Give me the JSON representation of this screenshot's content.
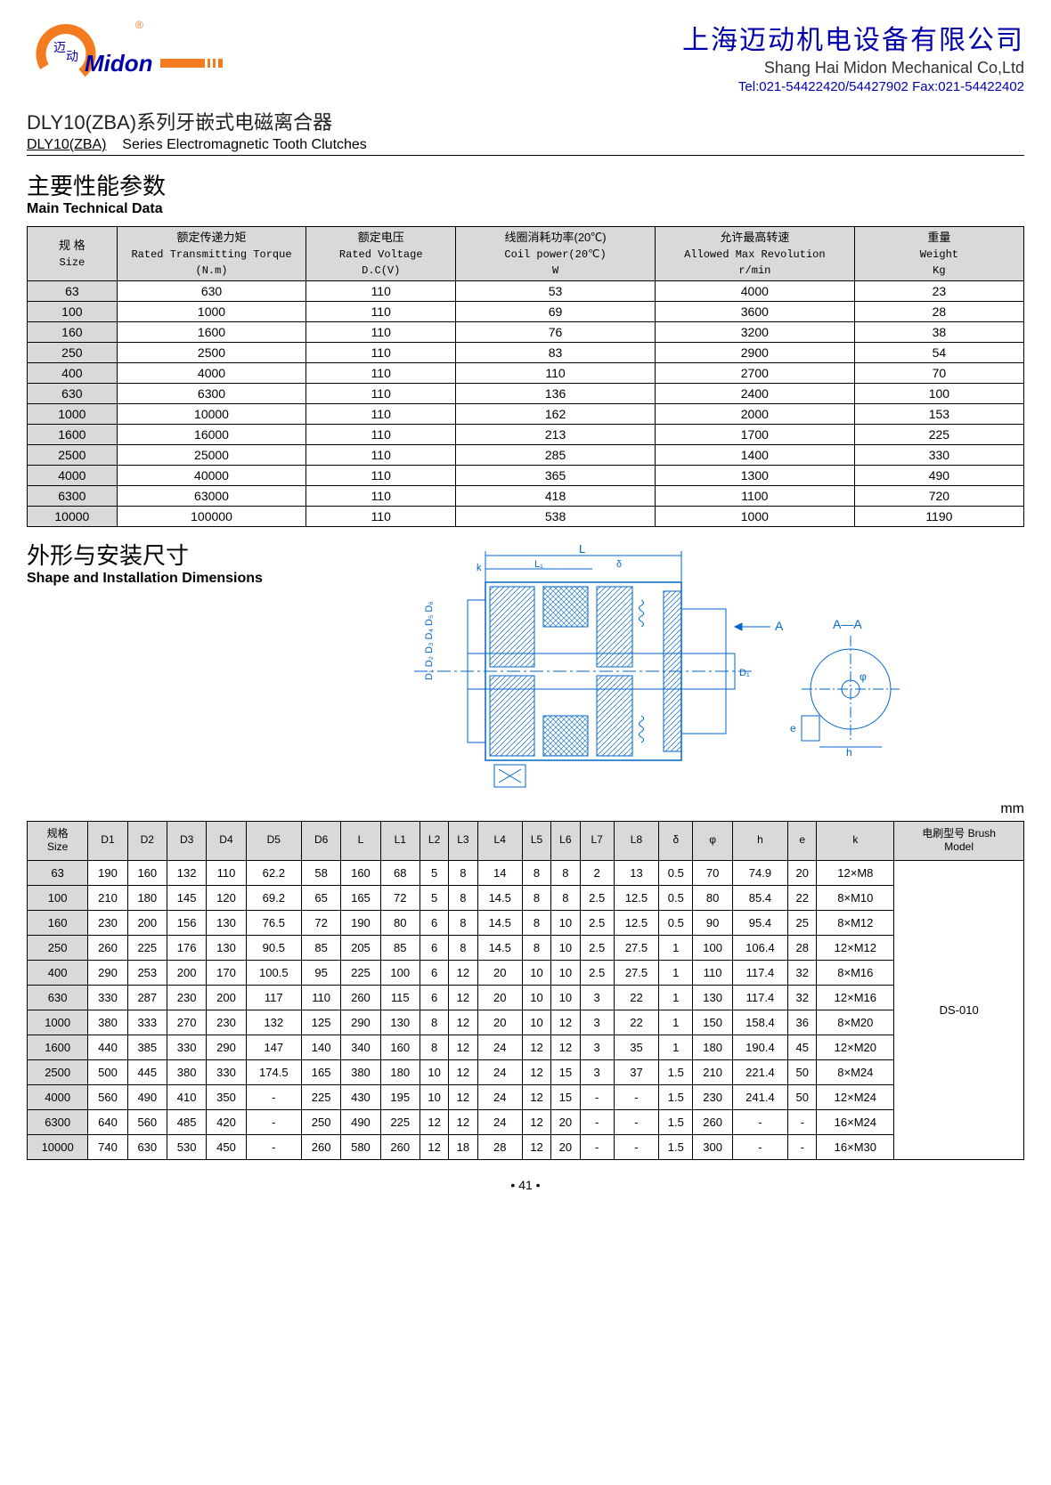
{
  "logo": {
    "brand_cn": "迈动",
    "brand_en": "Midon",
    "accent_color": "#f47b20",
    "reg_mark": "®"
  },
  "company": {
    "name_cn": "上海迈动机电设备有限公司",
    "name_en": "Shang Hai Midon Mechanical Co,Ltd",
    "contact": "Tel:021-54422420/54427902 Fax:021-54422402"
  },
  "product": {
    "title_prefix": "DLY10(ZBA)",
    "title_cn": "系列牙嵌式电磁离合器",
    "subtitle_prefix": "DLY10(ZBA)",
    "subtitle_en": "Series Electromagnetic Tooth Clutches"
  },
  "section1": {
    "heading_cn": "主要性能参数",
    "heading_en": "Main Technical Data"
  },
  "tech_table": {
    "headers": [
      {
        "cn": "规 格",
        "en": "Size",
        "unit": ""
      },
      {
        "cn": "额定传递力矩",
        "en": "Rated Transmitting Torque",
        "unit": "(N.m)"
      },
      {
        "cn": "额定电压",
        "en": "Rated Voltage",
        "unit": "D.C(V)"
      },
      {
        "cn": "线圈消耗功率(20℃)",
        "en": "Coil power(20℃)",
        "unit": "W"
      },
      {
        "cn": "允许最高转速",
        "en": "Allowed Max Revolution",
        "unit": "r/min"
      },
      {
        "cn": "重量",
        "en": "Weight",
        "unit": "Kg"
      }
    ],
    "rows": [
      [
        "63",
        "630",
        "110",
        "53",
        "4000",
        "23"
      ],
      [
        "100",
        "1000",
        "110",
        "69",
        "3600",
        "28"
      ],
      [
        "160",
        "1600",
        "110",
        "76",
        "3200",
        "38"
      ],
      [
        "250",
        "2500",
        "110",
        "83",
        "2900",
        "54"
      ],
      [
        "400",
        "4000",
        "110",
        "110",
        "2700",
        "70"
      ],
      [
        "630",
        "6300",
        "110",
        "136",
        "2400",
        "100"
      ],
      [
        "1000",
        "10000",
        "110",
        "162",
        "2000",
        "153"
      ],
      [
        "1600",
        "16000",
        "110",
        "213",
        "1700",
        "225"
      ],
      [
        "2500",
        "25000",
        "110",
        "285",
        "1400",
        "330"
      ],
      [
        "4000",
        "40000",
        "110",
        "365",
        "1300",
        "490"
      ],
      [
        "6300",
        "63000",
        "110",
        "418",
        "1100",
        "720"
      ],
      [
        "10000",
        "100000",
        "110",
        "538",
        "1000",
        "1190"
      ]
    ]
  },
  "section2": {
    "heading_cn": "外形与安装尺寸",
    "heading_en": "Shape and Installation Dimensions",
    "unit_label": "mm"
  },
  "dims_table": {
    "headers": [
      "规格\nSize",
      "D1",
      "D2",
      "D3",
      "D4",
      "D5",
      "D6",
      "L",
      "L1",
      "L2",
      "L3",
      "L4",
      "L5",
      "L6",
      "L7",
      "L8",
      "δ",
      "φ",
      "h",
      "e",
      "k",
      "电刷型号 Brush\nModel"
    ],
    "rows": [
      [
        "63",
        "190",
        "160",
        "132",
        "110",
        "62.2",
        "58",
        "160",
        "68",
        "5",
        "8",
        "14",
        "8",
        "8",
        "2",
        "13",
        "0.5",
        "70",
        "74.9",
        "20",
        "12×M8"
      ],
      [
        "100",
        "210",
        "180",
        "145",
        "120",
        "69.2",
        "65",
        "165",
        "72",
        "5",
        "8",
        "14.5",
        "8",
        "8",
        "2.5",
        "12.5",
        "0.5",
        "80",
        "85.4",
        "22",
        "8×M10"
      ],
      [
        "160",
        "230",
        "200",
        "156",
        "130",
        "76.5",
        "72",
        "190",
        "80",
        "6",
        "8",
        "14.5",
        "8",
        "10",
        "2.5",
        "12.5",
        "0.5",
        "90",
        "95.4",
        "25",
        "8×M12"
      ],
      [
        "250",
        "260",
        "225",
        "176",
        "130",
        "90.5",
        "85",
        "205",
        "85",
        "6",
        "8",
        "14.5",
        "8",
        "10",
        "2.5",
        "27.5",
        "1",
        "100",
        "106.4",
        "28",
        "12×M12"
      ],
      [
        "400",
        "290",
        "253",
        "200",
        "170",
        "100.5",
        "95",
        "225",
        "100",
        "6",
        "12",
        "20",
        "10",
        "10",
        "2.5",
        "27.5",
        "1",
        "110",
        "117.4",
        "32",
        "8×M16"
      ],
      [
        "630",
        "330",
        "287",
        "230",
        "200",
        "117",
        "110",
        "260",
        "115",
        "6",
        "12",
        "20",
        "10",
        "10",
        "3",
        "22",
        "1",
        "130",
        "117.4",
        "32",
        "12×M16"
      ],
      [
        "1000",
        "380",
        "333",
        "270",
        "230",
        "132",
        "125",
        "290",
        "130",
        "8",
        "12",
        "20",
        "10",
        "12",
        "3",
        "22",
        "1",
        "150",
        "158.4",
        "36",
        "8×M20"
      ],
      [
        "1600",
        "440",
        "385",
        "330",
        "290",
        "147",
        "140",
        "340",
        "160",
        "8",
        "12",
        "24",
        "12",
        "12",
        "3",
        "35",
        "1",
        "180",
        "190.4",
        "45",
        "12×M20"
      ],
      [
        "2500",
        "500",
        "445",
        "380",
        "330",
        "174.5",
        "165",
        "380",
        "180",
        "10",
        "12",
        "24",
        "12",
        "15",
        "3",
        "37",
        "1.5",
        "210",
        "221.4",
        "50",
        "8×M24"
      ],
      [
        "4000",
        "560",
        "490",
        "410",
        "350",
        "-",
        "225",
        "430",
        "195",
        "10",
        "12",
        "24",
        "12",
        "15",
        "-",
        "-",
        "1.5",
        "230",
        "241.4",
        "50",
        "12×M24"
      ],
      [
        "6300",
        "640",
        "560",
        "485",
        "420",
        "-",
        "250",
        "490",
        "225",
        "12",
        "12",
        "24",
        "12",
        "20",
        "-",
        "-",
        "1.5",
        "260",
        "-",
        "-",
        "16×M24"
      ],
      [
        "10000",
        "740",
        "630",
        "530",
        "450",
        "-",
        "260",
        "580",
        "260",
        "12",
        "18",
        "28",
        "12",
        "20",
        "-",
        "-",
        "1.5",
        "300",
        "-",
        "-",
        "16×M30"
      ]
    ],
    "brush_model": "DS-010"
  },
  "page_number": "• 41 •",
  "colors": {
    "header_bg": "#d9d9d9",
    "border": "#000000",
    "brand_blue": "#0000aa",
    "brand_orange": "#f47b20"
  }
}
